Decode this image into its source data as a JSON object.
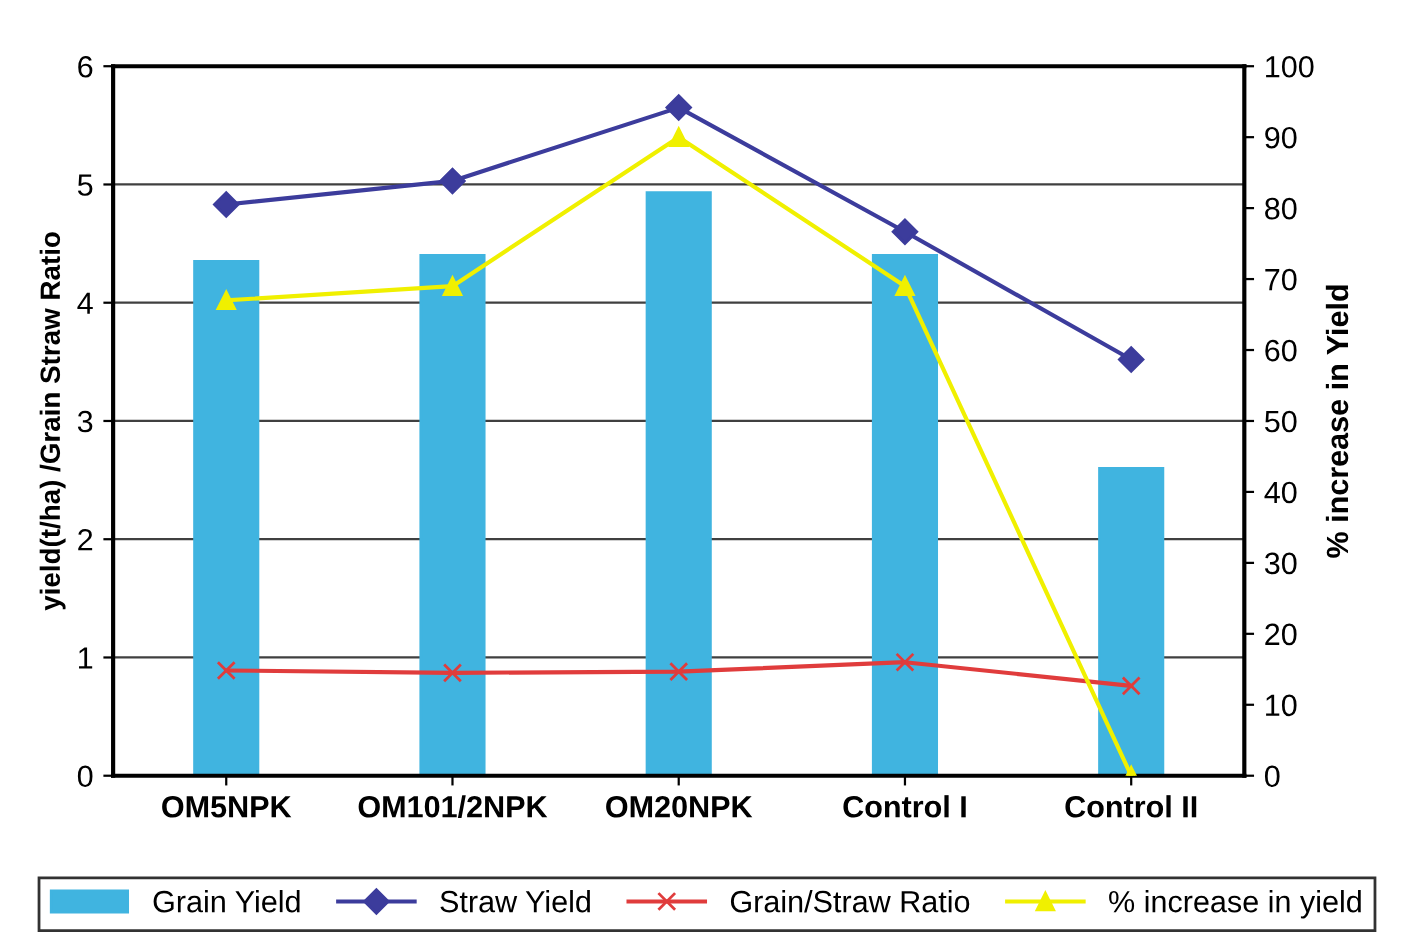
{
  "chart_data": {
    "type": "bar",
    "ylabel": "yield(t/ha) /Grain Straw Ratio",
    "y2label": "% increase in Yield",
    "categories": [
      "OM5NPK",
      "OM101/2NPK",
      "OM20NPK",
      "Control I",
      "Control II"
    ],
    "series": [
      {
        "name": "Grain Yield",
        "color": "#40b4e0",
        "values": [
          4.35,
          4.4,
          4.93,
          4.4,
          2.6
        ]
      },
      {
        "name": "Straw Yield",
        "type": "line",
        "marker": "diamond",
        "color": "#3c3c9c",
        "values": [
          4.83,
          5.03,
          5.65,
          4.6,
          3.52
        ]
      },
      {
        "name": "Grain/Straw Ratio",
        "type": "line",
        "marker": "cross",
        "color": "#e03c3c",
        "values": [
          0.89,
          0.87,
          0.88,
          0.96,
          0.76
        ]
      },
      {
        "name": "% increase in yield",
        "type": "line",
        "marker": "triangle",
        "axis": "y2",
        "color": "#f0f000",
        "values": [
          67,
          69,
          90,
          69,
          0
        ]
      }
    ],
    "ylim": [
      0,
      6
    ],
    "yticks": [
      0,
      1,
      2,
      3,
      4,
      5,
      6
    ],
    "y2lim": [
      0,
      100
    ],
    "y2ticks": [
      0,
      10,
      20,
      30,
      40,
      50,
      60,
      70,
      80,
      90,
      100
    ],
    "grid": "y",
    "legend": "bottom"
  }
}
